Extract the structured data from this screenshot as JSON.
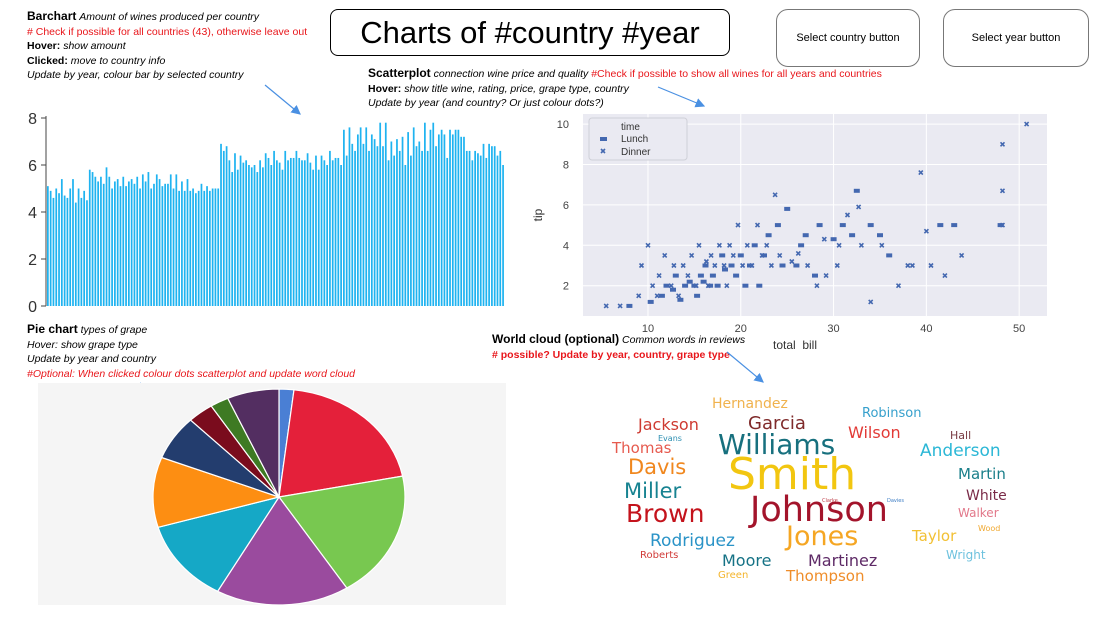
{
  "title": "Charts of #country #year",
  "buttons": {
    "country": "Select country button",
    "year": "Select year button"
  },
  "colors": {
    "bar": "#1fb3f0",
    "scatter": "#4468b0",
    "scatter_bg": "#eaeaf2",
    "annotation_red": "#e8161b",
    "arrow": "#4a90e2"
  },
  "barchart_notes": {
    "heading": "Barchart",
    "subtitle": "Amount of wines produced per country",
    "line1": "# Check if possible for all countries (43), otherwise leave out",
    "hover_label": "Hover:",
    "hover_text": "show amount",
    "clicked_label": "Clicked:",
    "clicked_text": "move to country info",
    "update": "Update by year, colour bar by selected country"
  },
  "scatter_notes": {
    "heading": "Scatterplot",
    "subtitle": "connection wine price and quality",
    "check": "#Check if possible to show all wines for all years and countries",
    "hover_label": "Hover:",
    "hover_text": "show title wine, rating, price, grape type, country",
    "update": "Update by year (and country? Or just colour dots?)"
  },
  "pie_notes": {
    "heading": "Pie chart",
    "subtitle": "types of grape",
    "hover": "Hover: show grape type",
    "update": "Update by year and country",
    "optional": "#Optional: When clicked colour dots scatterplot and update word cloud"
  },
  "cloud_notes": {
    "heading": "World cloud (optional)",
    "subtitle": "Common words in reviews",
    "line": "# possible? Update by year, country, grape type"
  },
  "chart_data": [
    {
      "type": "bar",
      "title": "",
      "yticks": [
        "0",
        "2",
        "4",
        "6",
        "8"
      ],
      "ylim": [
        0,
        8
      ],
      "values": [
        5.1,
        4.9,
        4.6,
        5.0,
        4.8,
        5.4,
        4.7,
        4.6,
        5.0,
        5.4,
        4.4,
        5.0,
        4.6,
        4.9,
        4.5,
        5.8,
        5.7,
        5.5,
        5.3,
        5.5,
        5.2,
        5.9,
        5.5,
        5.0,
        5.3,
        5.4,
        5.1,
        5.5,
        5.1,
        5.3,
        5.4,
        5.2,
        5.5,
        5.0,
        5.6,
        5.3,
        5.7,
        5.0,
        5.2,
        5.6,
        5.4,
        5.1,
        5.2,
        5.2,
        5.6,
        5.0,
        5.6,
        4.9,
        5.3,
        4.9,
        5.4,
        4.9,
        5.0,
        4.8,
        4.9,
        5.2,
        4.9,
        5.1,
        4.9,
        5.0,
        5.0,
        5.0,
        6.9,
        6.6,
        6.8,
        6.2,
        5.7,
        6.5,
        5.8,
        6.4,
        6.1,
        6.2,
        6.0,
        5.9,
        6.0,
        5.7,
        6.2,
        5.9,
        6.5,
        6.3,
        6.0,
        6.6,
        6.2,
        6.1,
        5.8,
        6.6,
        6.2,
        6.3,
        6.3,
        6.6,
        6.3,
        6.2,
        6.2,
        6.5,
        6.1,
        5.8,
        6.4,
        5.8,
        6.4,
        6.2,
        6.0,
        6.6,
        6.2,
        6.3,
        6.3,
        6.0,
        7.5,
        6.4,
        7.6,
        6.9,
        6.6,
        7.3,
        7.6,
        6.9,
        7.6,
        6.6,
        7.3,
        7.1,
        6.8,
        7.8,
        6.8,
        7.8,
        6.2,
        7.0,
        6.4,
        7.1,
        6.6,
        7.2,
        6.0,
        7.4,
        6.4,
        7.6,
        6.8,
        7.0,
        6.6,
        7.8,
        6.6,
        7.5,
        7.8,
        6.8,
        7.3,
        7.5,
        7.3,
        6.3,
        7.5,
        7.3,
        7.5,
        7.5,
        7.2,
        7.2,
        6.6,
        6.6,
        6.2,
        6.6,
        6.5,
        6.4,
        6.9,
        6.3,
        6.9,
        6.8,
        6.8,
        6.4,
        6.6,
        6.0
      ]
    },
    {
      "type": "scatter",
      "title": "",
      "xlabel": "total_bill",
      "ylabel": "tip",
      "xlim": [
        3,
        53
      ],
      "ylim": [
        0.5,
        10.5
      ],
      "xticks": [
        "10",
        "20",
        "30",
        "40",
        "50"
      ],
      "yticks": [
        "2",
        "4",
        "6",
        "8",
        "10"
      ],
      "legend": {
        "title": "time",
        "placement": "top-left"
      },
      "series": [
        {
          "name": "Lunch",
          "marker": "square",
          "points": [
            [
              8,
              1
            ],
            [
              10.3,
              1.2
            ],
            [
              11.5,
              1.5
            ],
            [
              12,
              2
            ],
            [
              12.7,
              1.8
            ],
            [
              13,
              2.5
            ],
            [
              13.5,
              1.3
            ],
            [
              14,
              2
            ],
            [
              14.5,
              2.2
            ],
            [
              15,
              2
            ],
            [
              15.3,
              1.5
            ],
            [
              15.7,
              2.5
            ],
            [
              16,
              2.2
            ],
            [
              16.2,
              3
            ],
            [
              16.7,
              2
            ],
            [
              17,
              2.5
            ],
            [
              17.5,
              2
            ],
            [
              18,
              3.5
            ],
            [
              18.3,
              2.8
            ],
            [
              19,
              3
            ],
            [
              19.5,
              2.5
            ],
            [
              20,
              3.5
            ],
            [
              20.5,
              2
            ],
            [
              21,
              3
            ],
            [
              21.5,
              4
            ],
            [
              22,
              2
            ],
            [
              22.5,
              3.5
            ],
            [
              23,
              4.5
            ],
            [
              24,
              5
            ],
            [
              24.5,
              3
            ],
            [
              25,
              5.8
            ],
            [
              26,
              3
            ],
            [
              26.5,
              4
            ],
            [
              27,
              4.5
            ],
            [
              28,
              2.5
            ],
            [
              28.5,
              5
            ],
            [
              30,
              4.3
            ],
            [
              31,
              5
            ],
            [
              32,
              4.5
            ],
            [
              32.5,
              6.7
            ],
            [
              34,
              5
            ],
            [
              35,
              4.5
            ],
            [
              36,
              3.5
            ],
            [
              41.5,
              5
            ],
            [
              43,
              5
            ],
            [
              48,
              5
            ]
          ]
        },
        {
          "name": "Dinner",
          "marker": "x",
          "points": [
            [
              5.5,
              1
            ],
            [
              7,
              1
            ],
            [
              9,
              1.5
            ],
            [
              9.3,
              3
            ],
            [
              10,
              4
            ],
            [
              10.5,
              2
            ],
            [
              11,
              1.5
            ],
            [
              11.2,
              2.5
            ],
            [
              11.8,
              3.5
            ],
            [
              12.5,
              2
            ],
            [
              12.8,
              3
            ],
            [
              13.3,
              1.5
            ],
            [
              13.8,
              3
            ],
            [
              14.3,
              2.5
            ],
            [
              14.7,
              3.5
            ],
            [
              15.2,
              2
            ],
            [
              15.5,
              4
            ],
            [
              16.3,
              3.2
            ],
            [
              16.5,
              2
            ],
            [
              16.8,
              3.5
            ],
            [
              17.2,
              3
            ],
            [
              17.7,
              4
            ],
            [
              18.2,
              3
            ],
            [
              18.5,
              2
            ],
            [
              18.8,
              4
            ],
            [
              19.2,
              3.5
            ],
            [
              19.7,
              5
            ],
            [
              20.2,
              3
            ],
            [
              20.7,
              4
            ],
            [
              21.2,
              3
            ],
            [
              21.8,
              5
            ],
            [
              22.3,
              3.5
            ],
            [
              22.8,
              4
            ],
            [
              23.3,
              3
            ],
            [
              23.7,
              6.5
            ],
            [
              24.2,
              3.5
            ],
            [
              25.5,
              3.2
            ],
            [
              26.2,
              3.6
            ],
            [
              27.2,
              3
            ],
            [
              28.2,
              2
            ],
            [
              29,
              4.3
            ],
            [
              29.2,
              2.5
            ],
            [
              30.4,
              3
            ],
            [
              30.6,
              4
            ],
            [
              31.5,
              5.5
            ],
            [
              32.7,
              5.9
            ],
            [
              33,
              4
            ],
            [
              34,
              1.2
            ],
            [
              35.2,
              4
            ],
            [
              37,
              2
            ],
            [
              38,
              3
            ],
            [
              38.5,
              3
            ],
            [
              39.4,
              7.6
            ],
            [
              40,
              4.7
            ],
            [
              40.5,
              3
            ],
            [
              42,
              2.5
            ],
            [
              43.8,
              3.5
            ],
            [
              48.2,
              9
            ],
            [
              48.2,
              6.7
            ],
            [
              48.2,
              5
            ],
            [
              50.8,
              10
            ]
          ]
        }
      ]
    },
    {
      "type": "pie",
      "title": "",
      "values": [
        2,
        21,
        20,
        18,
        13,
        11,
        7,
        3.5,
        2.5,
        7
      ],
      "colors": [
        "#4a7fd4",
        "#e4203a",
        "#78c850",
        "#9a4b9e",
        "#15a8c6",
        "#fd8e12",
        "#233d6e",
        "#7a0c1d",
        "#3e7a23",
        "#532e61"
      ]
    },
    {
      "type": "wordcloud",
      "words": [
        {
          "text": "Smith",
          "weight": 44,
          "color": "#f2c610"
        },
        {
          "text": "Johnson",
          "weight": 35,
          "color": "#a3142b"
        },
        {
          "text": "Williams",
          "weight": 28,
          "color": "#17707e"
        },
        {
          "text": "Jones",
          "weight": 27,
          "color": "#f5a623"
        },
        {
          "text": "Brown",
          "weight": 25,
          "color": "#c4131c"
        },
        {
          "text": "Davis",
          "weight": 21,
          "color": "#f0871e"
        },
        {
          "text": "Miller",
          "weight": 21,
          "color": "#178391"
        },
        {
          "text": "Garcia",
          "weight": 18,
          "color": "#7f2a2a"
        },
        {
          "text": "Wilson",
          "weight": 16,
          "color": "#e23a36"
        },
        {
          "text": "Anderson",
          "weight": 17,
          "color": "#2bb7d6"
        },
        {
          "text": "Jackson",
          "weight": 16,
          "color": "#ce3a31"
        },
        {
          "text": "Rodriguez",
          "weight": 17,
          "color": "#2a93c7"
        },
        {
          "text": "Martinez",
          "weight": 16,
          "color": "#5e2a66"
        },
        {
          "text": "Moore",
          "weight": 16,
          "color": "#157285"
        },
        {
          "text": "Thompson",
          "weight": 15,
          "color": "#ef8d2a"
        },
        {
          "text": "Thomas",
          "weight": 15,
          "color": "#e65a4e"
        },
        {
          "text": "Hernandez",
          "weight": 14,
          "color": "#f0b24d"
        },
        {
          "text": "Taylor",
          "weight": 15,
          "color": "#f2c033"
        },
        {
          "text": "Martin",
          "weight": 15,
          "color": "#1a7f8a"
        },
        {
          "text": "White",
          "weight": 14,
          "color": "#7a2b48"
        },
        {
          "text": "Robinson",
          "weight": 13,
          "color": "#36a0cc"
        },
        {
          "text": "Walker",
          "weight": 12,
          "color": "#e2788a"
        },
        {
          "text": "Wright",
          "weight": 12,
          "color": "#6ec2de"
        },
        {
          "text": "Hall",
          "weight": 11,
          "color": "#7a3c44"
        },
        {
          "text": "Roberts",
          "weight": 10,
          "color": "#d13b38"
        },
        {
          "text": "Green",
          "weight": 10,
          "color": "#f3b42b"
        },
        {
          "text": "Evans",
          "weight": 8,
          "color": "#2b8eb1"
        },
        {
          "text": "Wood",
          "weight": 8,
          "color": "#f0a830"
        },
        {
          "text": "Clarke",
          "weight": 5,
          "color": "#c0404a"
        },
        {
          "text": "Davies",
          "weight": 5,
          "color": "#3b7cc4"
        }
      ]
    }
  ]
}
